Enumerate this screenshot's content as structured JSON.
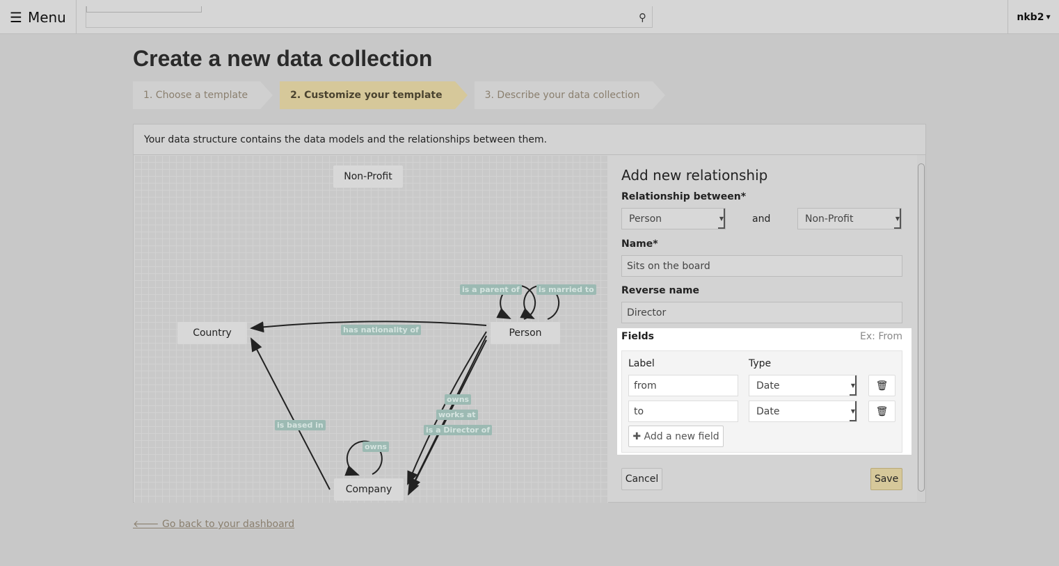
{
  "topbar": {
    "menu_label": "Menu",
    "search_placeholder": "",
    "user": "nkb2"
  },
  "page_title": "Create a new data collection",
  "steps": [
    {
      "label": "1. Choose a template",
      "active": false
    },
    {
      "label": "2. Customize your template",
      "active": true
    },
    {
      "label": "3. Describe your data collection",
      "active": false
    }
  ],
  "intro": "Your data structure contains the data models and the relationships between them.",
  "graph": {
    "nodes": {
      "nonprofit": "Non-Profit",
      "country": "Country",
      "person": "Person",
      "company": "Company"
    },
    "edges": {
      "nationality": "has nationality of",
      "based": "is based in",
      "owns_pc": "owns",
      "works": "works at",
      "director": "is a Director of",
      "owns_self": "owns",
      "parent": "is a parent of",
      "married": "is married to"
    }
  },
  "form": {
    "title": "Add new relationship",
    "between_label": "Relationship between*",
    "from_model": "Person",
    "and_label": "and",
    "to_model": "Non-Profit",
    "name_label": "Name*",
    "name_value": "Sits on the board",
    "reverse_label": "Reverse name",
    "reverse_value": "Director",
    "fields_label": "Fields",
    "fields_hint": "Ex: From",
    "col_label": "Label",
    "col_type": "Type",
    "rows": [
      {
        "label": "from",
        "type": "Date"
      },
      {
        "label": "to",
        "type": "Date"
      }
    ],
    "add_field": "Add a new field",
    "cancel": "Cancel",
    "save": "Save"
  },
  "back_link": "Go back to your dashboard",
  "colors": {
    "accent": "#d6c89a",
    "edge_label": "#9cbab3"
  }
}
